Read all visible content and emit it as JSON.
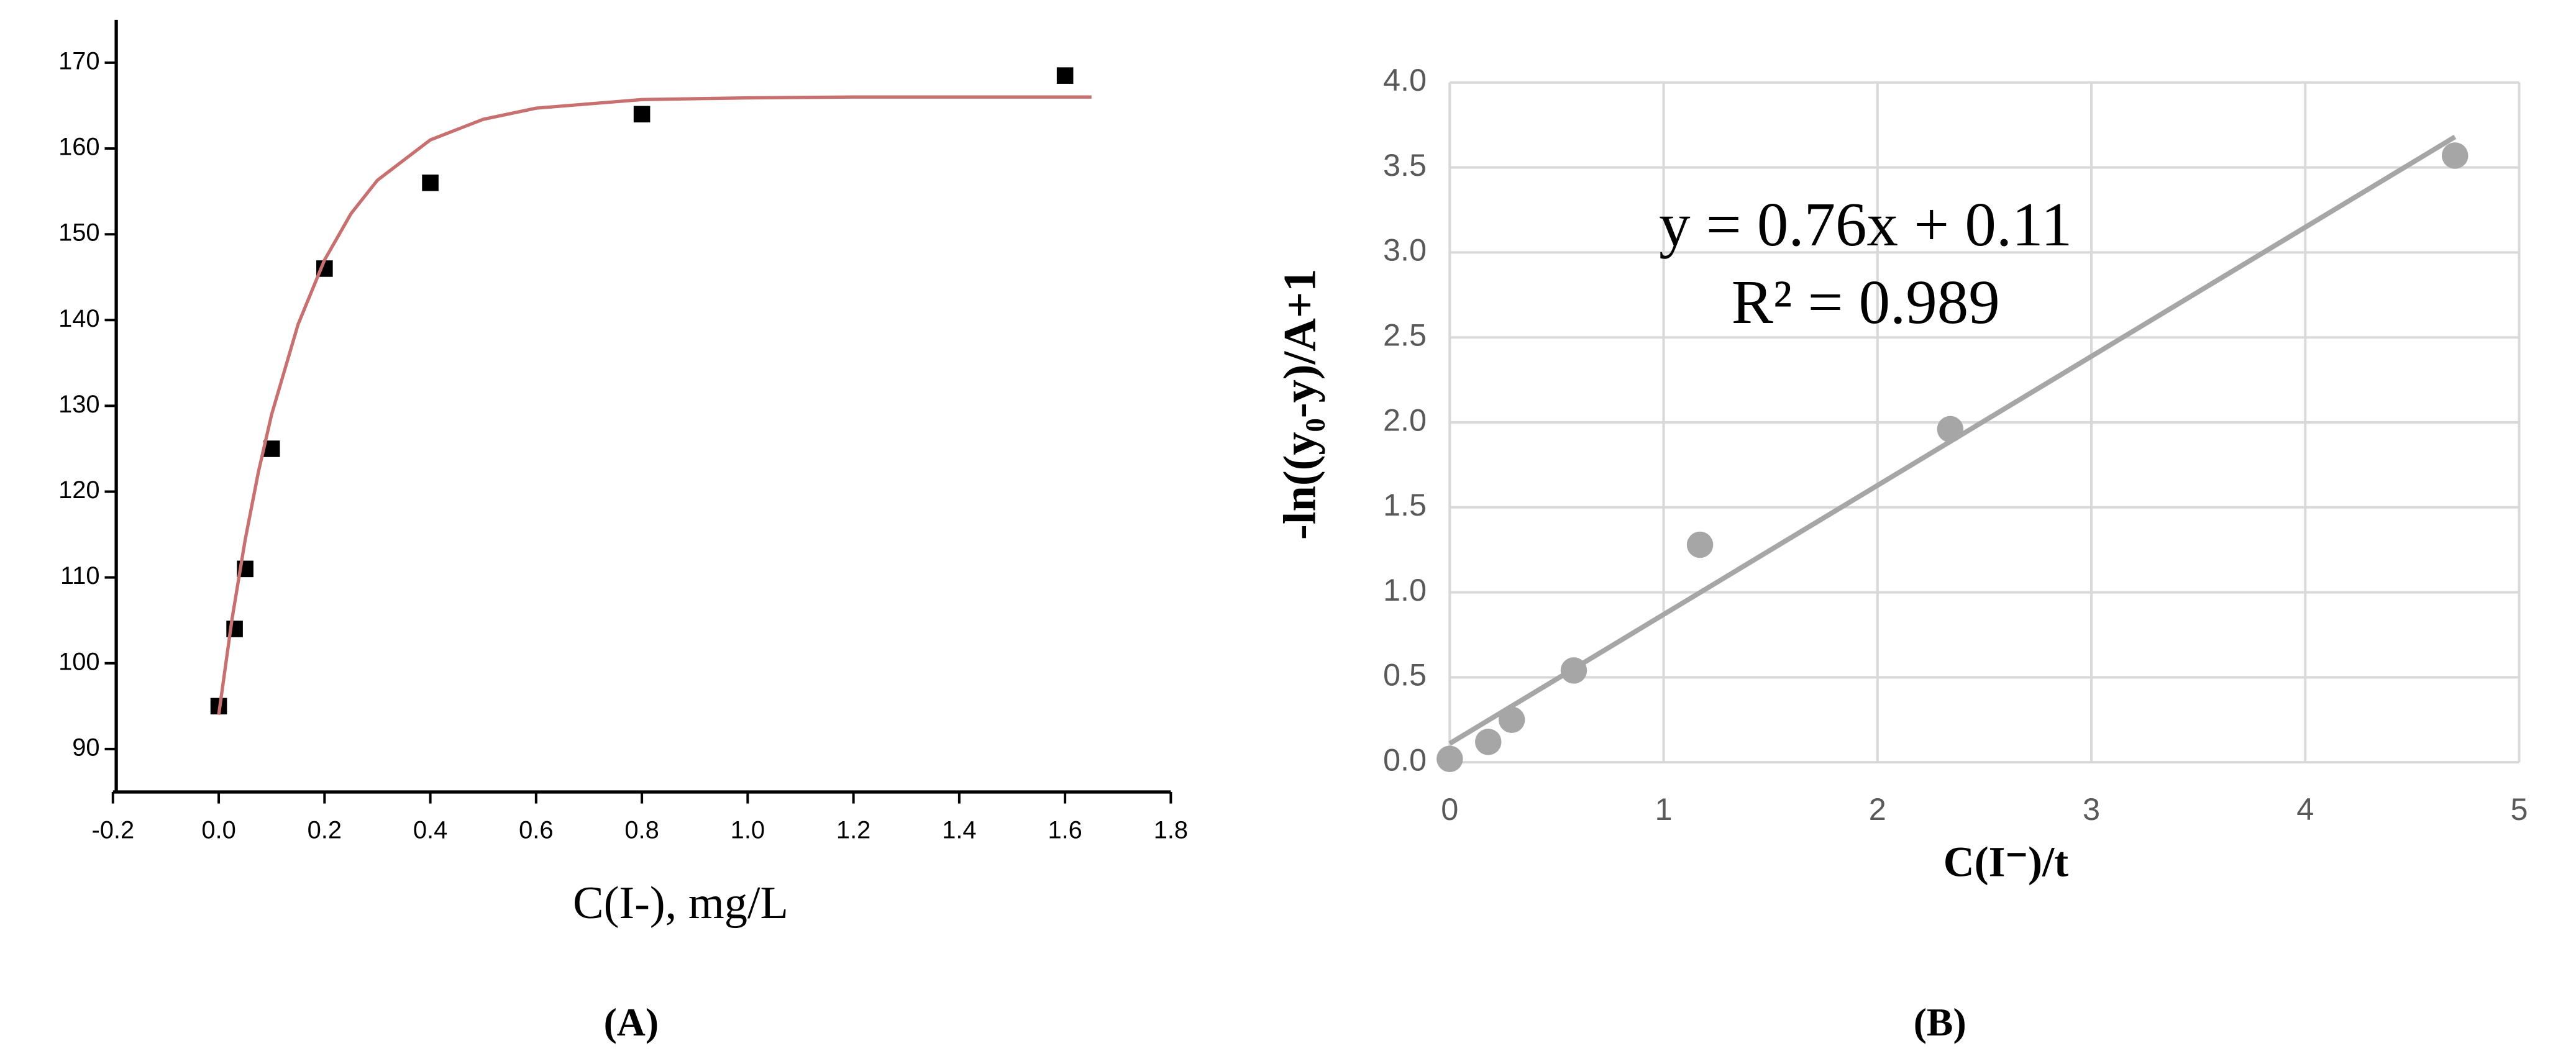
{
  "chart_data": [
    {
      "type": "scatter",
      "panel": "(A)",
      "x_label": "C(I-),  mg/L",
      "xlim": [
        -0.2,
        1.8
      ],
      "xticks": [
        -0.2,
        {
          "value": 0,
          "label": "0.0"
        },
        0.2,
        0.4,
        0.6,
        0.8,
        {
          "value": 1,
          "label": "1.0"
        },
        1.2,
        1.4,
        1.6,
        1.8
      ],
      "ylim": [
        85,
        175
      ],
      "yticks": [
        90,
        100,
        110,
        120,
        130,
        140,
        150,
        160,
        170
      ],
      "grid": false,
      "series": [
        {
          "type": "scatter",
          "marker": "square",
          "color": "#000000",
          "x": [
            0,
            0.03,
            0.05,
            0.1,
            0.2,
            0.4,
            0.8,
            1.6
          ],
          "values": [
            95,
            104,
            111,
            125,
            146,
            156,
            164,
            168.5
          ]
        },
        {
          "type": "line",
          "color": "#c87070",
          "x": [
            0,
            0.025,
            0.05,
            0.075,
            0.1,
            0.15,
            0.2,
            0.25,
            0.3,
            0.4,
            0.5,
            0.6,
            0.8,
            1,
            1.2,
            1.4,
            1.65
          ],
          "values": [
            94,
            105.1,
            114.4,
            122.3,
            129,
            139.5,
            147,
            152.4,
            156.3,
            161,
            163.4,
            164.7,
            165.7,
            165.9,
            166,
            166,
            166
          ]
        }
      ]
    },
    {
      "type": "scatter",
      "panel": "(B)",
      "x_label": "C(I⁻)/t",
      "y_label": "-ln((y₀-y)/A+1",
      "annotations": [
        "y = 0.76x + 0.11",
        "R² = 0.989"
      ],
      "xlim": [
        0,
        5
      ],
      "xticks": [
        0,
        1,
        2,
        3,
        4,
        5
      ],
      "ylim": [
        0,
        4
      ],
      "yticks": [
        {
          "value": 0,
          "label": "0.0"
        },
        0.5,
        {
          "value": 1,
          "label": "1.0"
        },
        1.5,
        {
          "value": 2,
          "label": "2.0"
        },
        2.5,
        {
          "value": 3,
          "label": "3.0"
        },
        3.5,
        {
          "value": 4,
          "label": "4.0"
        }
      ],
      "grid": true,
      "series": [
        {
          "type": "line",
          "color": "#a6a6a6",
          "x": [
            0,
            4.7
          ],
          "values": [
            0.11,
            3.68
          ]
        },
        {
          "type": "scatter",
          "marker": "circle",
          "color": "#a6a6a6",
          "x": [
            0,
            0.18,
            0.29,
            0.58,
            1.17,
            2.34,
            4.7
          ],
          "values": [
            0.02,
            0.12,
            0.25,
            0.54,
            1.28,
            1.96,
            3.57
          ]
        }
      ]
    }
  ]
}
